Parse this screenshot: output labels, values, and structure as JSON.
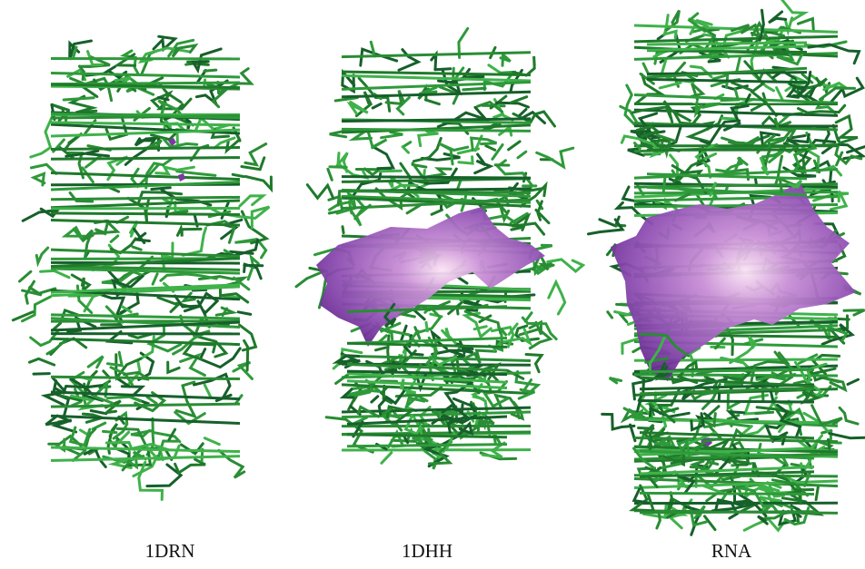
{
  "panels": [
    {
      "label": "1DRN"
    },
    {
      "label": "1DHH"
    },
    {
      "label": "RNA"
    }
  ]
}
